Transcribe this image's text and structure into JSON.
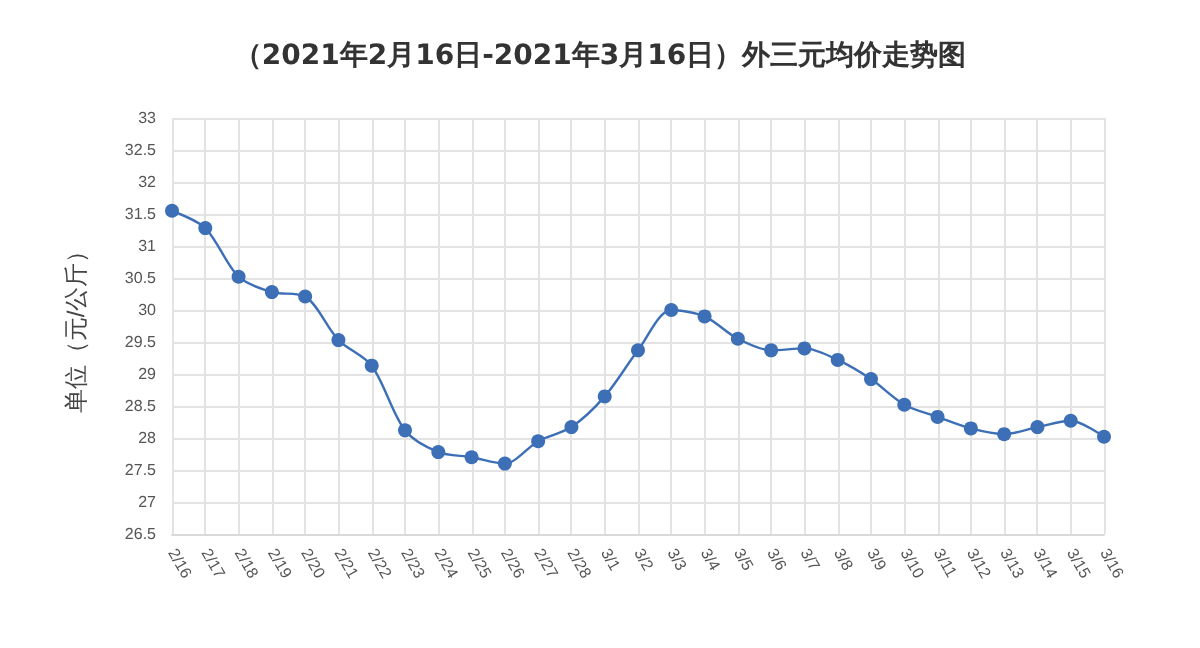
{
  "chart_data": {
    "type": "line",
    "title": "（2021年2月16日-2021年3月16日）外三元均价走势图",
    "ylabel": "单位（元/公斤）",
    "categories": [
      "2/16",
      "2/17",
      "2/18",
      "2/19",
      "2/20",
      "2/21",
      "2/22",
      "2/23",
      "2/24",
      "2/25",
      "2/26",
      "2/27",
      "2/28",
      "3/1",
      "3/2",
      "3/3",
      "3/4",
      "3/5",
      "3/6",
      "3/7",
      "3/8",
      "3/9",
      "3/10",
      "3/11",
      "3/12",
      "3/13",
      "3/14",
      "3/15",
      "3/16"
    ],
    "series": [
      {
        "color": "#3d6fb6",
        "values": [
          31.55,
          31.28,
          30.52,
          30.28,
          30.21,
          29.53,
          29.13,
          28.12,
          27.78,
          27.7,
          27.6,
          27.95,
          28.17,
          28.65,
          29.37,
          30.0,
          29.9,
          29.55,
          29.37,
          29.4,
          29.22,
          28.92,
          28.52,
          28.33,
          28.15,
          28.06,
          28.17,
          28.27,
          28.02
        ]
      }
    ],
    "ylim": [
      26.5,
      33
    ],
    "yticks": [
      26.5,
      27,
      27.5,
      28,
      28.5,
      29,
      29.5,
      30,
      30.5,
      31,
      31.5,
      32,
      32.5,
      33
    ],
    "grid": true,
    "marker": "circle",
    "line_style": "solid"
  }
}
